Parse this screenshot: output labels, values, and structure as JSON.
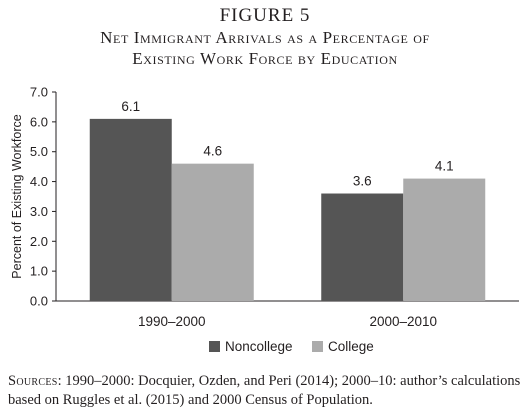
{
  "figure": {
    "label": "FIGURE 5",
    "title_line1": "Net Immigrant Arrivals as a Percentage of",
    "title_line2": "Existing Work Force by Education"
  },
  "chart_data": {
    "type": "bar",
    "categories": [
      "1990–2000",
      "2000–2010"
    ],
    "series": [
      {
        "name": "Noncollege",
        "values": [
          6.1,
          3.6
        ],
        "color": "#555555"
      },
      {
        "name": "College",
        "values": [
          4.6,
          4.1
        ],
        "color": "#ababab"
      }
    ],
    "data_labels": [
      [
        "6.1",
        "3.6"
      ],
      [
        "4.6",
        "4.1"
      ]
    ],
    "ylabel": "Percent of Existing Workforce",
    "xlabel": "",
    "ylim": [
      0,
      7
    ],
    "yticks": [
      "0.0",
      "1.0",
      "2.0",
      "3.0",
      "4.0",
      "5.0",
      "6.0",
      "7.0"
    ],
    "grid": false,
    "legend_position": "bottom-center"
  },
  "source": {
    "prefix": "Sources",
    "text": ": 1990–2000: Docquier, Ozden, and Peri (2014); 2000–10: author’s calculations based on Ruggles et al. (2015) and 2000 Census of Population."
  }
}
